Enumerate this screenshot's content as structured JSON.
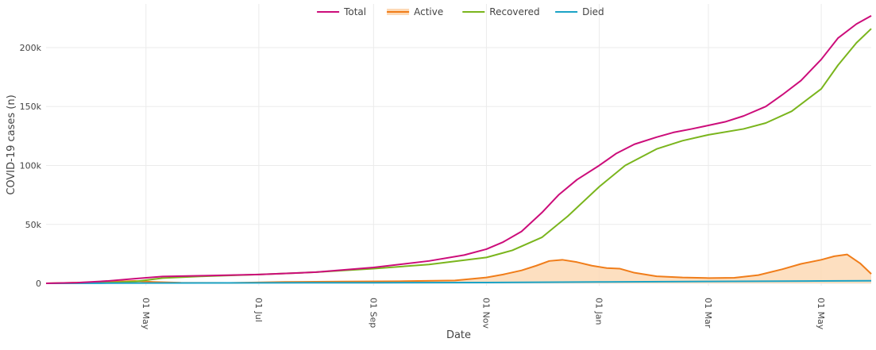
{
  "chart_data": {
    "type": "line",
    "title": "",
    "xlabel": "Date",
    "ylabel": "COVID-19 cases (n)",
    "x_ticks": [
      "2020-05-01",
      "2020-07-01",
      "2020-09-01",
      "2020-11-01",
      "2021-01-01",
      "2021-03-01",
      "2021-05-01"
    ],
    "x_tick_labels": [
      "01 May",
      "01 Jul",
      "01 Sep",
      "01 Nov",
      "01 Jan",
      "01 Mar",
      "01 May"
    ],
    "xlim": [
      "2020-03-08",
      "2021-05-28"
    ],
    "y_ticks": [
      0,
      50000,
      100000,
      150000,
      200000
    ],
    "y_tick_labels": [
      "0",
      "50k",
      "100k",
      "150k",
      "200k"
    ],
    "ylim": [
      -2000,
      237000
    ],
    "grid": true,
    "legend_position": "top-center",
    "series": [
      {
        "name": "Total",
        "color": "#cc0d7a",
        "fill": false,
        "x": [
          "2020-03-08",
          "2020-03-25",
          "2020-04-10",
          "2020-04-25",
          "2020-05-10",
          "2020-06-01",
          "2020-07-01",
          "2020-08-01",
          "2020-09-01",
          "2020-10-01",
          "2020-10-20",
          "2020-11-01",
          "2020-11-10",
          "2020-11-20",
          "2020-12-01",
          "2020-12-10",
          "2020-12-20",
          "2021-01-01",
          "2021-01-10",
          "2021-01-20",
          "2021-02-01",
          "2021-02-10",
          "2021-02-20",
          "2021-03-01",
          "2021-03-10",
          "2021-03-20",
          "2021-04-01",
          "2021-04-10",
          "2021-04-20",
          "2021-05-01",
          "2021-05-10",
          "2021-05-20",
          "2021-05-28"
        ],
        "y": [
          0,
          600,
          2000,
          4000,
          5800,
          6500,
          7500,
          9500,
          13500,
          19000,
          24000,
          29000,
          35000,
          44000,
          60000,
          75000,
          88000,
          100000,
          110000,
          118000,
          124000,
          128000,
          131000,
          134000,
          137000,
          142000,
          150000,
          160000,
          172000,
          190000,
          208000,
          220000,
          227000
        ]
      },
      {
        "name": "Active",
        "color": "#f07d1a",
        "fill": true,
        "fill_color": "#fdd9b5",
        "x": [
          "2020-03-08",
          "2020-04-10",
          "2020-04-25",
          "2020-05-05",
          "2020-05-20",
          "2020-06-15",
          "2020-07-15",
          "2020-08-15",
          "2020-09-15",
          "2020-10-15",
          "2020-11-01",
          "2020-11-10",
          "2020-11-20",
          "2020-11-28",
          "2020-12-05",
          "2020-12-12",
          "2020-12-20",
          "2020-12-28",
          "2021-01-05",
          "2021-01-12",
          "2021-01-20",
          "2021-02-01",
          "2021-02-15",
          "2021-03-01",
          "2021-03-15",
          "2021-03-28",
          "2021-04-10",
          "2021-04-20",
          "2021-05-01",
          "2021-05-08",
          "2021-05-15",
          "2021-05-22",
          "2021-05-28"
        ],
        "y": [
          0,
          1200,
          2000,
          1200,
          500,
          400,
          1200,
          1500,
          1800,
          2500,
          5000,
          7500,
          11000,
          15000,
          19000,
          20000,
          18000,
          15000,
          13000,
          12500,
          9000,
          6000,
          5000,
          4500,
          4700,
          7000,
          12000,
          16500,
          20000,
          23000,
          24500,
          17000,
          8000
        ]
      },
      {
        "name": "Recovered",
        "color": "#7ab51d",
        "fill": false,
        "x": [
          "2020-03-08",
          "2020-04-10",
          "2020-04-25",
          "2020-05-10",
          "2020-06-01",
          "2020-07-01",
          "2020-08-01",
          "2020-09-01",
          "2020-10-01",
          "2020-11-01",
          "2020-11-15",
          "2020-12-01",
          "2020-12-15",
          "2021-01-01",
          "2021-01-15",
          "2021-02-01",
          "2021-02-15",
          "2021-03-01",
          "2021-03-20",
          "2021-04-01",
          "2021-04-15",
          "2021-05-01",
          "2021-05-10",
          "2021-05-20",
          "2021-05-28"
        ],
        "y": [
          0,
          500,
          1500,
          4500,
          6000,
          7500,
          9500,
          12500,
          16000,
          22000,
          28000,
          39000,
          57000,
          82000,
          100000,
          114000,
          121000,
          126000,
          131000,
          136000,
          146000,
          165000,
          185000,
          204000,
          216000
        ]
      },
      {
        "name": "Died",
        "color": "#1ba3c6",
        "fill": false,
        "x": [
          "2020-03-08",
          "2020-04-10",
          "2020-05-01",
          "2020-07-01",
          "2020-09-01",
          "2020-11-01",
          "2021-01-01",
          "2021-03-01",
          "2021-05-01",
          "2021-05-28"
        ],
        "y": [
          0,
          150,
          300,
          450,
          550,
          700,
          1200,
          1600,
          2000,
          2200
        ]
      }
    ]
  }
}
